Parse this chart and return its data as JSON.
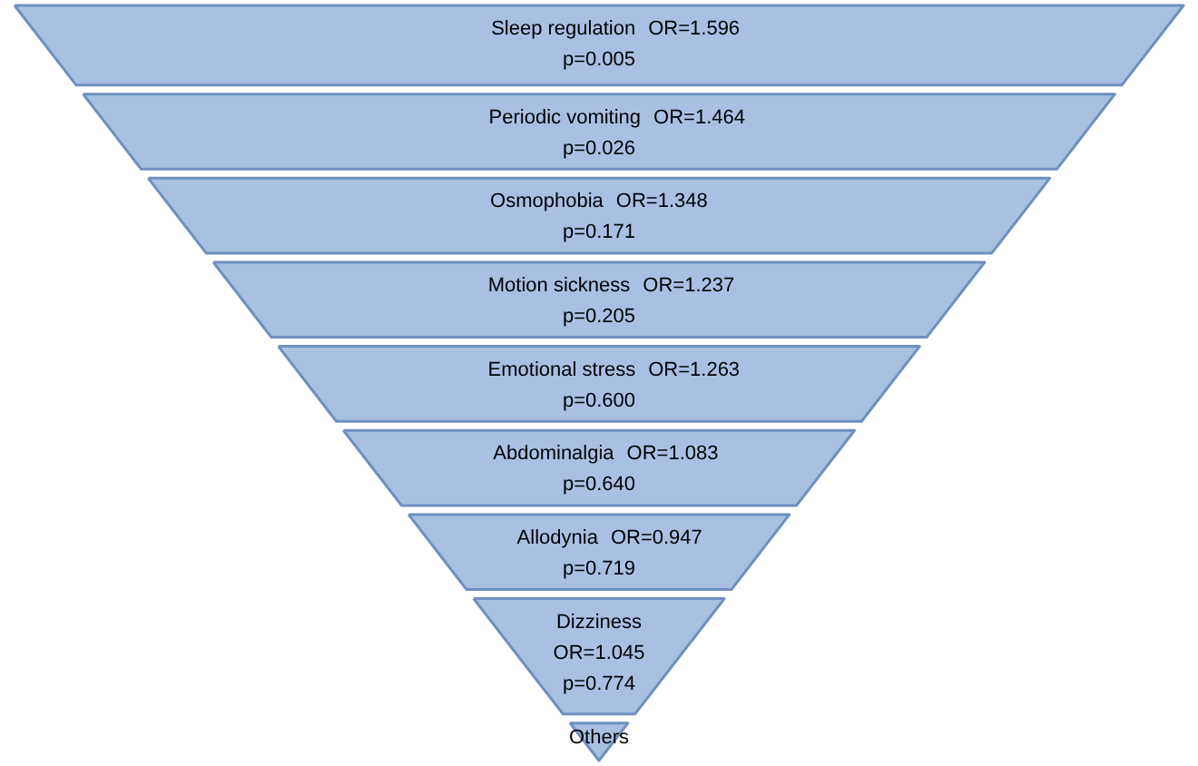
{
  "chart_data": {
    "type": "other",
    "categories": [
      "Sleep regulation",
      "Periodic vomiting",
      "Osmophobia",
      "Motion sickness",
      "Emotional stress",
      "Abdominalgia",
      "Allodynia",
      "Dizziness",
      "Others"
    ],
    "values": [
      1.596,
      1.464,
      1.348,
      1.237,
      1.263,
      1.083,
      0.947,
      1.045,
      null
    ],
    "value_labels": [
      "OR=1.596",
      "OR=1.464",
      "OR=1.348",
      "OR=1.237",
      "OR=1.263",
      "OR=1.083",
      "OR=0.947",
      "OR=1.045",
      null
    ],
    "annotations": [
      "p=0.005",
      "p=0.026",
      "p=0.171",
      "p=0.205",
      "p=0.600",
      "p=0.640",
      "p=0.719",
      "p=0.774",
      null
    ],
    "color": "#a9c0e2"
  }
}
